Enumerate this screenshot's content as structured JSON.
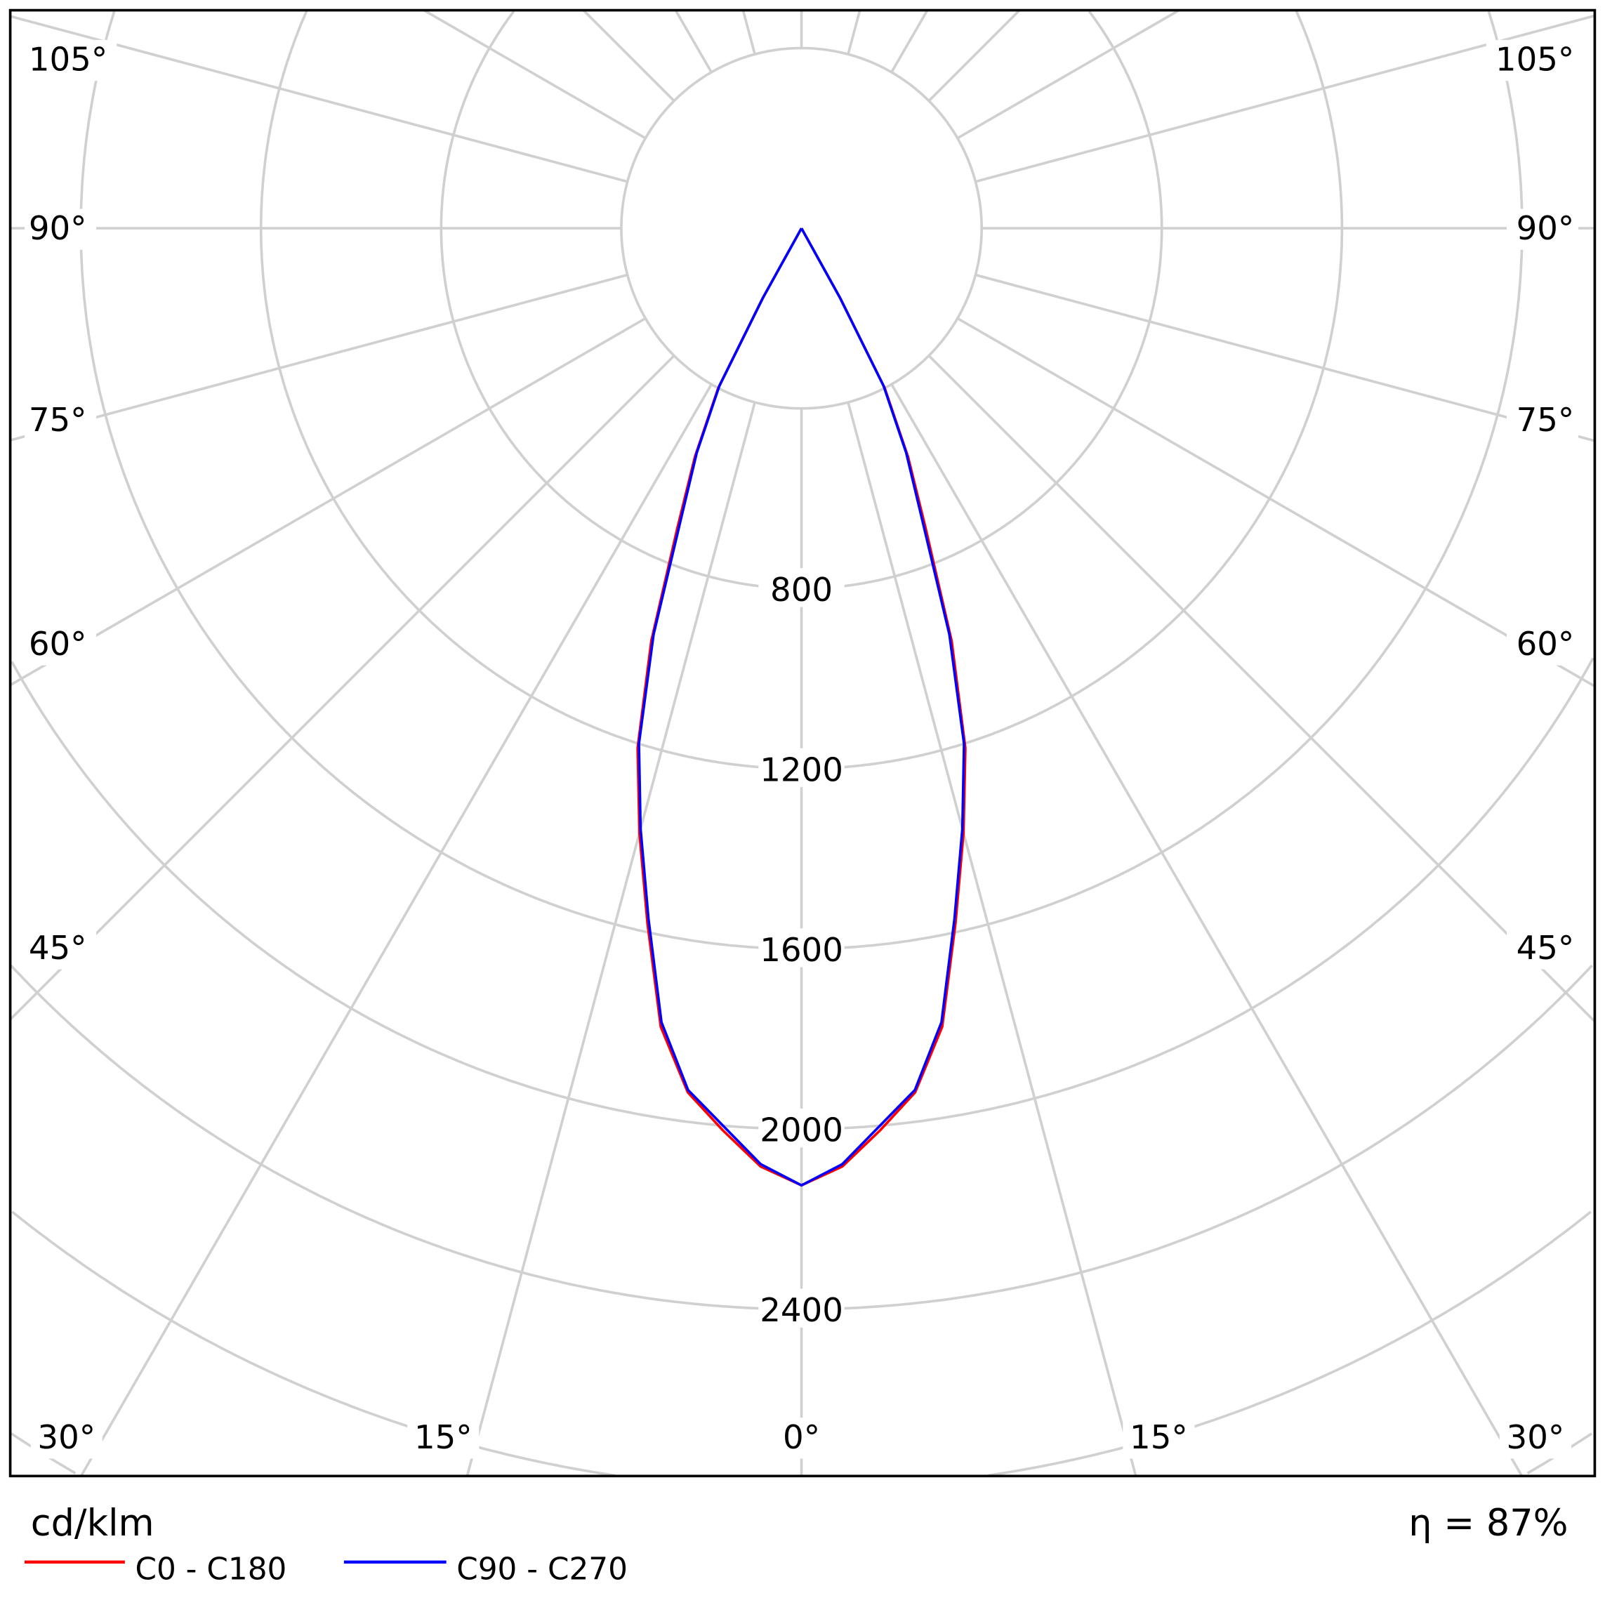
{
  "chart_data": {
    "type": "polar",
    "unit_label": "cd/klm",
    "efficiency_label": "η = 87%",
    "radial_ticks": [
      800,
      1200,
      1600,
      2000,
      2400
    ],
    "radial_grid_step": 400,
    "angle_tick_labels": [
      "0°",
      "15°",
      "15°",
      "30°",
      "30°",
      "45°",
      "45°",
      "60°",
      "60°",
      "75°",
      "75°",
      "90°",
      "90°",
      "105°",
      "105°"
    ],
    "angle_grid_step_deg": 15,
    "grid": true,
    "legend_position": "bottom-left",
    "series": [
      {
        "name": "C0 - C180",
        "color": "#ff0000",
        "angles_deg": [
          0,
          2.5,
          5,
          7.5,
          10,
          12.5,
          15,
          17.5,
          20,
          22.5,
          25,
          27.5,
          29,
          30
        ],
        "values": [
          2125,
          2085,
          2010,
          1935,
          1800,
          1580,
          1390,
          1210,
          975,
          720,
          560,
          400,
          180,
          0
        ]
      },
      {
        "name": "C90 - C270",
        "color": "#0000ff",
        "angles_deg": [
          0,
          2.5,
          5,
          7.5,
          10,
          12.5,
          15,
          17.5,
          20,
          22.5,
          25,
          27.5,
          29,
          30
        ],
        "values": [
          2125,
          2080,
          2000,
          1930,
          1790,
          1570,
          1380,
          1200,
          960,
          700,
          550,
          395,
          175,
          0
        ]
      }
    ]
  }
}
